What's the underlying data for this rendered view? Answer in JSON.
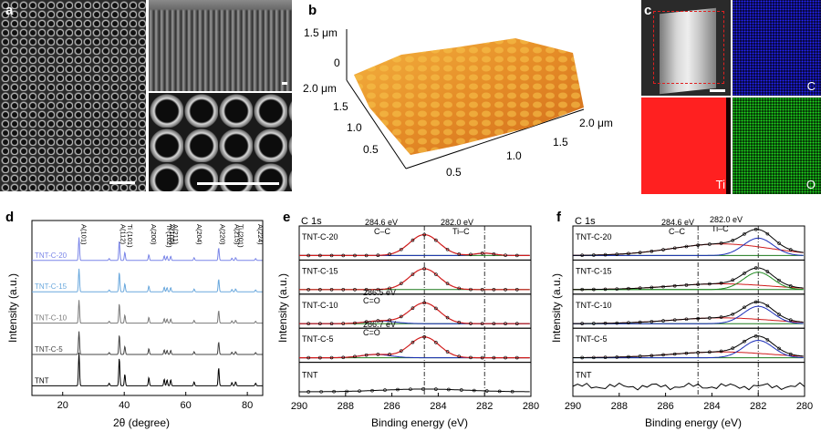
{
  "panels": {
    "a": "a",
    "b": "b",
    "c": "c",
    "d": "d",
    "e": "e",
    "f": "f"
  },
  "afm": {
    "z_top": "1.5 μm",
    "z_zero": "0",
    "y_axis_ticks": [
      "2.0 μm",
      "1.5",
      "1.0",
      "0.5"
    ],
    "x_axis_ticks": [
      "0.5",
      "1.0",
      "1.5",
      "2.0 μm"
    ],
    "surface_color": "#e8922a"
  },
  "eds_maps": {
    "map_labels": [
      "C",
      "Ti",
      "O"
    ],
    "colors": {
      "C": "#1a1aff",
      "Ti": "#ff1a1a",
      "O": "#22cc22"
    }
  },
  "chart_data": [
    {
      "panel": "d",
      "type": "line",
      "title": "",
      "xlabel": "2θ (degree)",
      "ylabel": "Intensity (a.u.)",
      "xlim": [
        10,
        85
      ],
      "xticks": [
        20,
        40,
        60,
        80
      ],
      "series": [
        {
          "name": "TNT-C-20",
          "color": "#7b86e8"
        },
        {
          "name": "TNT-C-15",
          "color": "#6aa8dd"
        },
        {
          "name": "TNT-C-10",
          "color": "#7a7a7a"
        },
        {
          "name": "TNT-C-5",
          "color": "#444444"
        },
        {
          "name": "TNT",
          "color": "#000000"
        }
      ],
      "peaks_2theta": [
        25.3,
        35.1,
        38.4,
        40.2,
        48.0,
        53.0,
        53.9,
        55.1,
        62.7,
        70.7,
        75.0,
        76.2,
        82.7
      ],
      "peak_annotations": [
        {
          "x": 25.3,
          "label": "A(101)"
        },
        {
          "x": 38.0,
          "label": "A(112)"
        },
        {
          "x": 40.2,
          "label": "Ti (101)"
        },
        {
          "x": 48.0,
          "label": "A(200)"
        },
        {
          "x": 53.0,
          "label": "Ti (102)"
        },
        {
          "x": 53.9,
          "label": "A(105)"
        },
        {
          "x": 55.1,
          "label": "A(211)"
        },
        {
          "x": 62.7,
          "label": "A(204)"
        },
        {
          "x": 70.3,
          "label": "A(220)"
        },
        {
          "x": 75.0,
          "label": "A(215)"
        },
        {
          "x": 76.2,
          "label": "Ti (201)"
        },
        {
          "x": 82.7,
          "label": "A(224)"
        }
      ]
    },
    {
      "panel": "e",
      "type": "line",
      "title": "C 1s",
      "xlabel": "Binding energy (eV)",
      "ylabel": "Intensity (a.u.)",
      "xlim": [
        290,
        280
      ],
      "xticks": [
        290,
        288,
        286,
        284,
        282,
        280
      ],
      "series": [
        {
          "name": "TNT-C-20"
        },
        {
          "name": "TNT-C-15"
        },
        {
          "name": "TNT-C-10"
        },
        {
          "name": "TNT-C-5"
        },
        {
          "name": "TNT"
        }
      ],
      "reference_lines": [
        284.6,
        282.0
      ],
      "annotations": [
        {
          "text": "284.6 eV",
          "sub": "C–C"
        },
        {
          "text": "282.0 eV",
          "sub": "Ti–C"
        },
        {
          "text": "286.5 eV",
          "sub": "C=O"
        },
        {
          "text": "286.7 eV",
          "sub": "C=O"
        }
      ]
    },
    {
      "panel": "f",
      "type": "line",
      "title": "C 1s",
      "xlabel": "Binding energy (eV)",
      "ylabel": "Intensity (a.u.)",
      "xlim": [
        290,
        280
      ],
      "xticks": [
        290,
        288,
        286,
        284,
        282,
        280
      ],
      "series": [
        {
          "name": "TNT-C-20"
        },
        {
          "name": "TNT-C-15"
        },
        {
          "name": "TNT-C-10"
        },
        {
          "name": "TNT-C-5"
        },
        {
          "name": "TNT"
        }
      ],
      "reference_lines": [
        284.6,
        282.0
      ],
      "annotations": [
        {
          "text": "284.6 eV",
          "sub": "C–C"
        },
        {
          "text": "282.0 eV",
          "sub": "Ti–C"
        }
      ]
    }
  ]
}
